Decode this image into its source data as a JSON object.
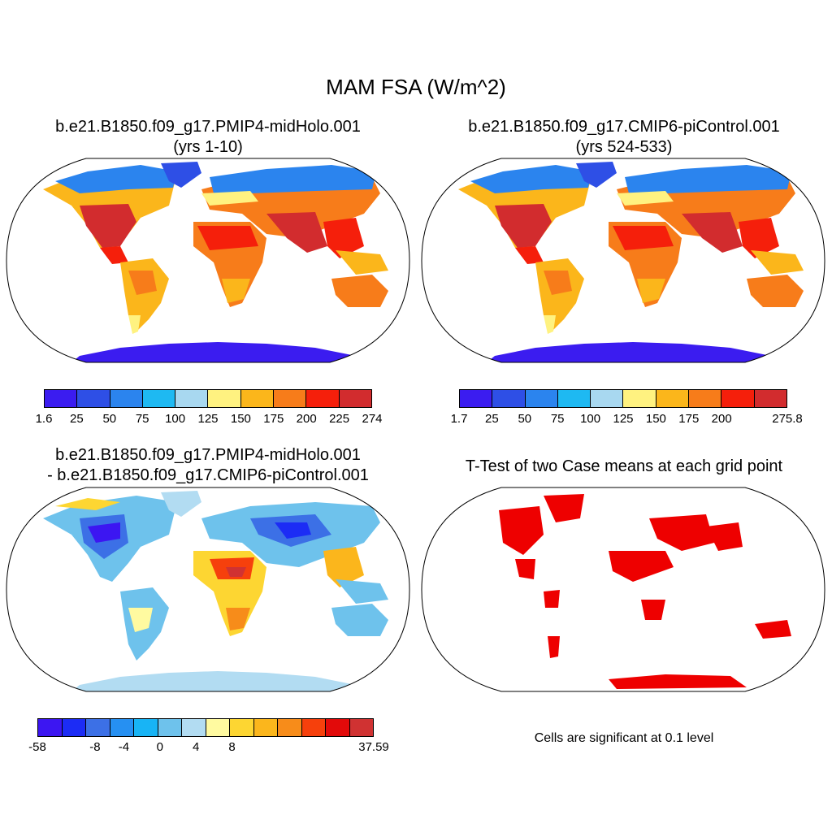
{
  "figure": {
    "title": "MAM FSA (W/m^2)"
  },
  "panels": {
    "midholo": {
      "title_line1": "b.e21.B1850.f09_g17.PMIP4-midHolo.001",
      "title_line2": "(yrs 1-10)",
      "colorbar": {
        "colors": [
          "#3b1cf0",
          "#2e4fe6",
          "#2b84ee",
          "#1eb9f2",
          "#a8d8f0",
          "#fff280",
          "#fbb61b",
          "#f77c1a",
          "#f51f0b",
          "#d22c2e"
        ],
        "labels": [
          "1.6",
          "25",
          "50",
          "75",
          "100",
          "125",
          "150",
          "175",
          "200",
          "225",
          "274"
        ]
      }
    },
    "picontrol": {
      "title_line1": "b.e21.B1850.f09_g17.CMIP6-piControl.001",
      "title_line2": "(yrs 524-533)",
      "colorbar": {
        "colors": [
          "#3b1cf0",
          "#2e4fe6",
          "#2b84ee",
          "#1eb9f2",
          "#a8d8f0",
          "#fff280",
          "#fbb61b",
          "#f77c1a",
          "#f51f0b",
          "#d22c2e"
        ],
        "labels": [
          "1.7",
          "25",
          "50",
          "75",
          "100",
          "125",
          "150",
          "175",
          "200",
          "275.8"
        ]
      }
    },
    "difference": {
      "title_line1": "b.e21.B1850.f09_g17.PMIP4-midHolo.001",
      "title_line2": "- b.e21.B1850.f09_g17.CMIP6-piControl.001",
      "colorbar": {
        "colors": [
          "#3c16f2",
          "#1c2cf5",
          "#3c70e6",
          "#2690f2",
          "#18b4f5",
          "#6ec2ec",
          "#b2dcf2",
          "#fffaa0",
          "#fdd632",
          "#fbb61c",
          "#f78c1a",
          "#f6400c",
          "#e20a0a",
          "#d03232"
        ],
        "labels": [
          "-58",
          "-8",
          "-4",
          "0",
          "4",
          "8",
          "37.59"
        ]
      }
    },
    "ttest": {
      "title": "T-Test of two Case means at each grid point",
      "note": "Cells are significant at 0.1 level",
      "sig_color": "#ee0000"
    }
  }
}
